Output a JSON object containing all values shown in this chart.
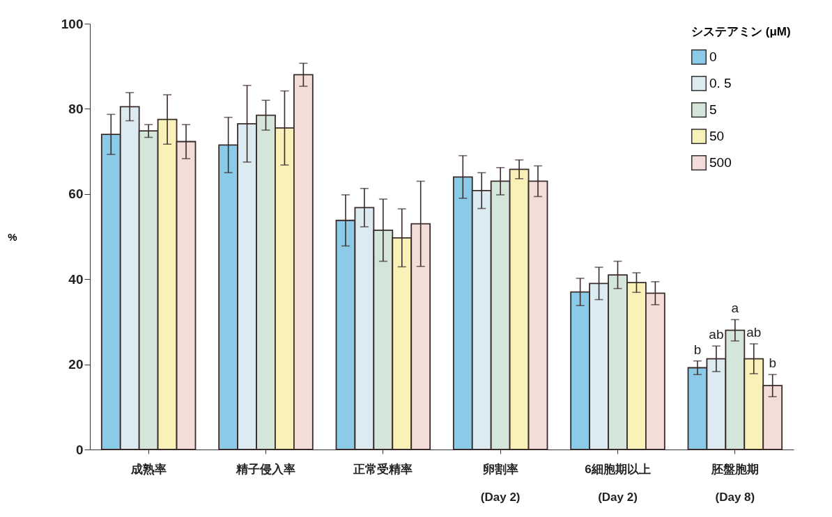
{
  "chart_data": {
    "type": "bar",
    "ylabel": "%",
    "legend_title": "システアミン (μM)",
    "legend": "top right",
    "grid": false,
    "categories": [
      "成熟率",
      "精子侵入率",
      "正常受精率",
      "卵割率\n(Day 2)",
      "6細胞期以上\n(Day 2)",
      "胚盤胞期\n(Day 8)"
    ],
    "ylim": [
      0,
      100
    ],
    "yticks": [
      0,
      20,
      40,
      60,
      80,
      100
    ],
    "series": [
      {
        "name": "0",
        "color": "#8ccbe8",
        "values": [
          74,
          71.5,
          53.8,
          64,
          37,
          19.2
        ],
        "errors": [
          4.7,
          6.5,
          6,
          5,
          3.2,
          1.6
        ]
      },
      {
        "name": "0. 5",
        "color": "#dcebf2",
        "values": [
          80.5,
          76.5,
          56.8,
          60.8,
          39,
          21.3
        ],
        "errors": [
          3.3,
          9,
          4.5,
          4.2,
          3.8,
          3
        ]
      },
      {
        "name": "5",
        "color": "#d4e6da",
        "values": [
          74.8,
          78.5,
          51.5,
          63,
          41,
          28
        ],
        "errors": [
          1.5,
          3.5,
          7.3,
          3.2,
          3.2,
          2.5
        ]
      },
      {
        "name": "50",
        "color": "#f8f2b8",
        "values": [
          77.5,
          75.5,
          49.7,
          65.8,
          39.2,
          21.3
        ],
        "errors": [
          5.8,
          8.7,
          6.8,
          2.2,
          2.3,
          3.5
        ]
      },
      {
        "name": "500",
        "color": "#f2ddd8",
        "values": [
          72.3,
          88,
          53,
          63,
          36.7,
          15
        ],
        "errors": [
          4,
          2.7,
          10,
          3.6,
          2.7,
          2.6
        ]
      }
    ],
    "annotations": [
      "b",
      "ab",
      "a",
      "ab",
      "b"
    ]
  }
}
